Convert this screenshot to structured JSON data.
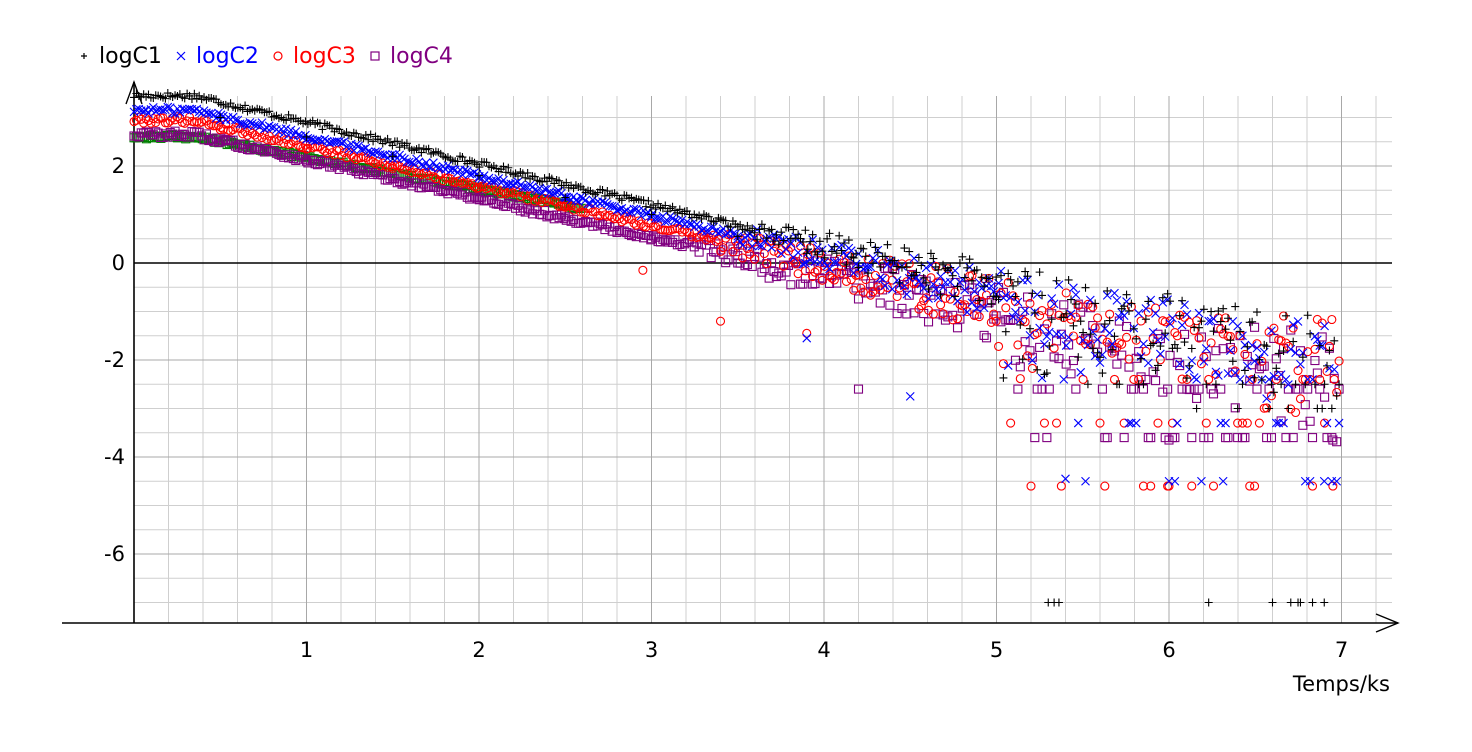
{
  "chart_data": {
    "type": "scatter",
    "title": "",
    "xlabel": "Temps/ks",
    "ylabel": "",
    "xlim": [
      -0.42,
      7.42
    ],
    "ylim": [
      -7.6,
      3.8
    ],
    "x_ticks": [
      1,
      2,
      3,
      4,
      5,
      6,
      7
    ],
    "y_ticks": [
      2,
      0,
      -2,
      -4,
      -6
    ],
    "x_tick_labels": [
      "1",
      "2",
      "3",
      "4",
      "5",
      "6",
      "7"
    ],
    "y_tick_labels": [
      "2",
      "0",
      "-2",
      "-4",
      "-6"
    ],
    "grid": true,
    "legend_placement": "top-left",
    "series": [
      {
        "name": "logC1",
        "marker": "plus",
        "color": "#000000",
        "start": 3.45,
        "slope": -0.85,
        "noise_start": 3.6,
        "floors": [
          -2.5,
          -3.0,
          -7.0
        ],
        "points": [
          [
            0.5,
            3.0
          ],
          [
            1.0,
            2.6
          ],
          [
            1.5,
            2.2
          ],
          [
            2.0,
            1.8
          ],
          [
            2.5,
            1.35
          ],
          [
            3.0,
            1.0
          ],
          [
            3.5,
            0.55
          ],
          [
            3.9,
            0.2
          ],
          [
            4.4,
            -0.2
          ],
          [
            5.0,
            -0.7
          ],
          [
            5.3,
            -7.0
          ],
          [
            6.6,
            -7.0
          ],
          [
            6.9,
            -7.0
          ]
        ]
      },
      {
        "name": "logC2",
        "marker": "x",
        "color": "#0000ff",
        "start": 3.15,
        "slope": -0.82,
        "noise_start": 3.5,
        "floors": [
          -2.4,
          -3.3,
          -4.5
        ],
        "points": [
          [
            0.5,
            2.95
          ],
          [
            1.0,
            2.55
          ],
          [
            1.5,
            2.15
          ],
          [
            2.0,
            1.75
          ],
          [
            2.5,
            1.35
          ],
          [
            3.0,
            0.95
          ],
          [
            3.5,
            0.5
          ],
          [
            3.9,
            -1.55
          ],
          [
            4.5,
            -2.75
          ],
          [
            5.4,
            -4.45
          ],
          [
            6.0,
            -4.5
          ],
          [
            6.9,
            -4.5
          ]
        ]
      },
      {
        "name": "logC3",
        "marker": "circle",
        "color": "#ff0000",
        "start": 2.95,
        "slope": -0.82,
        "noise_start": 3.3,
        "floors": [
          -2.4,
          -3.3,
          -4.6
        ],
        "points": [
          [
            0.5,
            2.75
          ],
          [
            1.0,
            2.35
          ],
          [
            1.5,
            1.95
          ],
          [
            2.0,
            1.55
          ],
          [
            2.5,
            1.15
          ],
          [
            2.95,
            -0.15
          ],
          [
            3.4,
            -1.2
          ],
          [
            3.9,
            -1.45
          ],
          [
            5.2,
            -4.6
          ],
          [
            6.0,
            -4.6
          ],
          [
            6.95,
            -4.6
          ]
        ]
      },
      {
        "name": "logC4",
        "marker": "square",
        "color": "#800080",
        "start": 2.65,
        "slope": -0.8,
        "noise_start": 3.2,
        "floors": [
          -2.6,
          -3.6
        ],
        "points": [
          [
            0.5,
            2.5
          ],
          [
            1.0,
            2.1
          ],
          [
            1.5,
            1.75
          ],
          [
            2.0,
            1.35
          ],
          [
            2.5,
            0.95
          ],
          [
            3.0,
            0.5
          ],
          [
            3.5,
            0.0
          ],
          [
            4.2,
            -2.6
          ],
          [
            6.0,
            -3.65
          ],
          [
            6.95,
            -3.65
          ]
        ]
      }
    ],
    "extra_series": [
      {
        "marker": "square",
        "color": "#008000",
        "start": 2.6,
        "slope": -0.65,
        "x_range": [
          0.0,
          2.6
        ]
      }
    ]
  }
}
